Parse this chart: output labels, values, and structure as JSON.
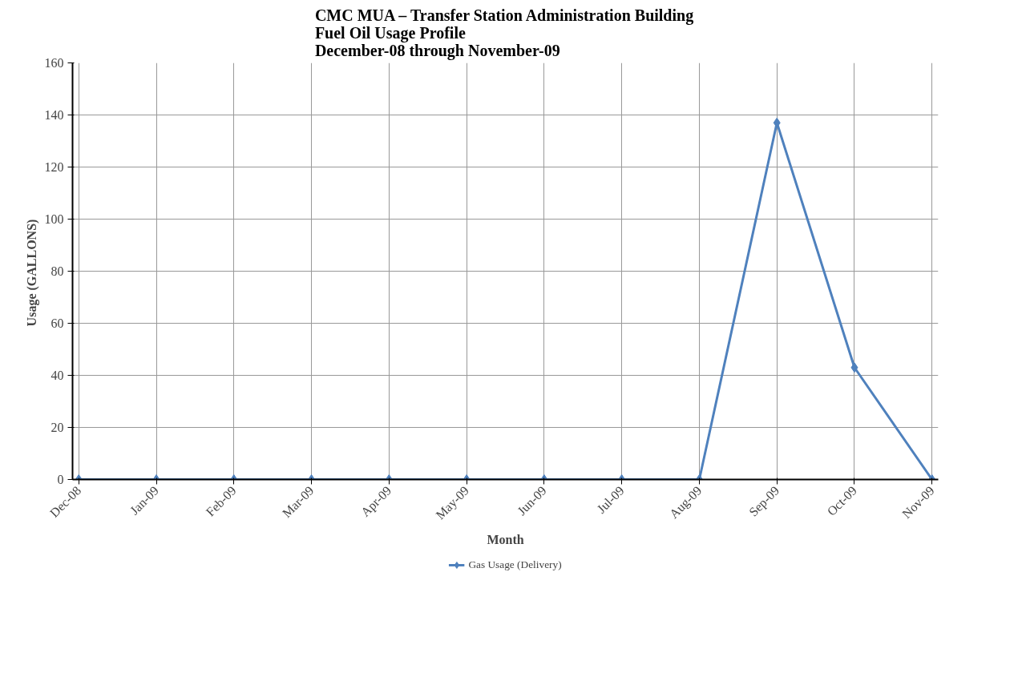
{
  "chart_data": {
    "type": "line",
    "title": "CMC MUA – Transfer Station Administration Building\nFuel Oil Usage Profile\nDecember-08 through November-09",
    "xlabel": "Month",
    "ylabel": "Usage  (GALLONS)",
    "categories": [
      "Dec-08",
      "Jan-09",
      "Feb-09",
      "Mar-09",
      "Apr-09",
      "May-09",
      "Jun-09",
      "Jul-09",
      "Aug-09",
      "Sep-09",
      "Oct-09",
      "Nov-09"
    ],
    "series": [
      {
        "name": "Gas Usage (Delivery)",
        "color": "#4f81bd",
        "values": [
          0,
          0,
          0,
          0,
          0,
          0,
          0,
          0,
          0,
          137,
          43,
          0
        ]
      }
    ],
    "ylim": [
      0,
      160
    ],
    "yticks": [
      0,
      20,
      40,
      60,
      80,
      100,
      120,
      140,
      160
    ],
    "grid": true,
    "legend": "bottom",
    "marker": "diamond",
    "line_style": "solid"
  }
}
